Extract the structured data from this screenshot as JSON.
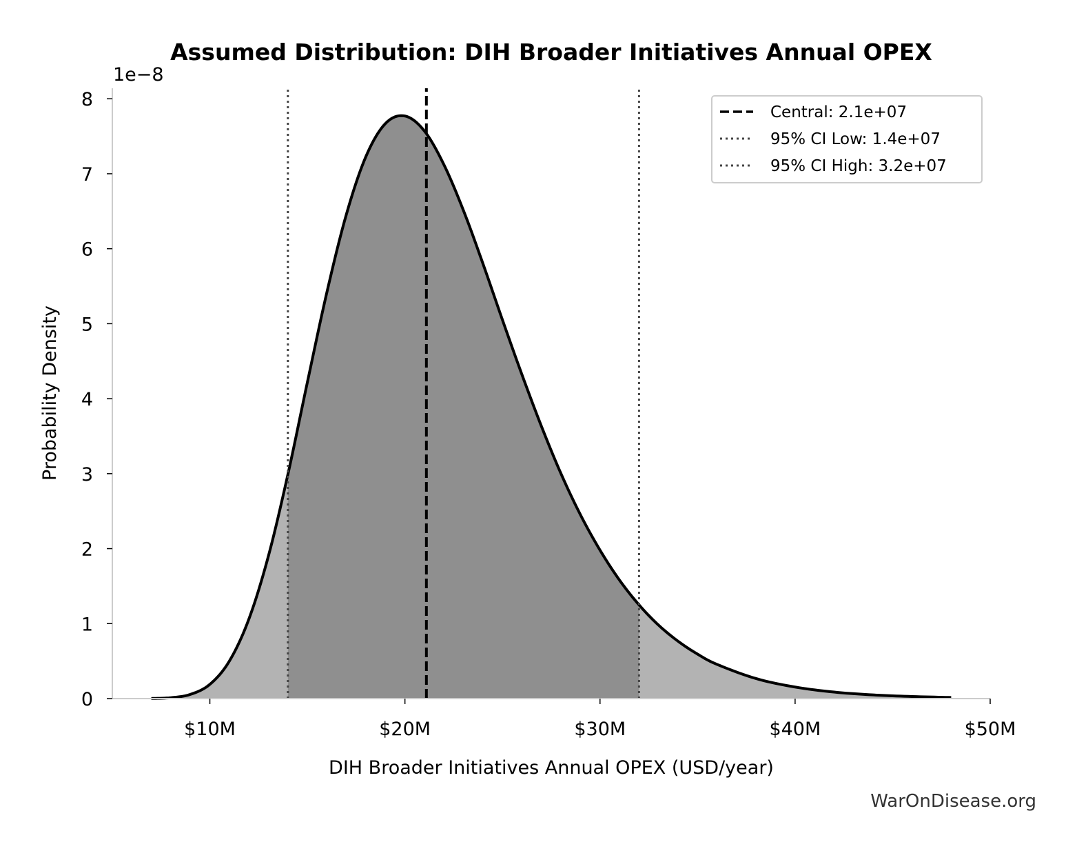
{
  "chart_data": {
    "type": "area",
    "title": "Assumed Distribution: DIH Broader Initiatives Annual OPEX",
    "xlabel": "DIH Broader Initiatives Annual OPEX (USD/year)",
    "ylabel": "Probability Density",
    "y_offset_label": "1e−8",
    "xlim": [
      5,
      50
    ],
    "ylim": [
      0,
      8.14
    ],
    "x_unit": "million USD",
    "y_unit": "1e-8",
    "x_ticks": [
      10,
      20,
      30,
      40,
      50
    ],
    "x_tick_labels": [
      "$10M",
      "$20M",
      "$30M",
      "$40M",
      "$50M"
    ],
    "y_ticks": [
      0,
      1,
      2,
      3,
      4,
      5,
      6,
      7,
      8
    ],
    "y_tick_labels": [
      "0",
      "1",
      "2",
      "3",
      "4",
      "5",
      "6",
      "7",
      "8"
    ],
    "grid": false,
    "legend_placement": "top-right",
    "series": [
      {
        "x": [
          7,
          8,
          9,
          10,
          11,
          12,
          13,
          14,
          15,
          16,
          17,
          18,
          19,
          20,
          21,
          22,
          23,
          24,
          25,
          26,
          27,
          28,
          29,
          30,
          31,
          32,
          33,
          34,
          35,
          36,
          38,
          40,
          42,
          44,
          46,
          48
        ],
        "y": [
          0.0015,
          0.012,
          0.056,
          0.19,
          0.5,
          1.06,
          1.9,
          2.99,
          4.22,
          5.42,
          6.46,
          7.23,
          7.67,
          7.77,
          7.57,
          7.12,
          6.51,
          5.8,
          5.05,
          4.32,
          3.63,
          3.0,
          2.45,
          1.98,
          1.58,
          1.25,
          0.98,
          0.765,
          0.593,
          0.456,
          0.267,
          0.154,
          0.087,
          0.049,
          0.028,
          0.015
        ]
      }
    ],
    "reference_lines": [
      {
        "label": "Central: 2.1e+07",
        "x": 21.1,
        "style": "dashed",
        "color": "#000000"
      },
      {
        "label": "95% CI Low: 1.4e+07",
        "x": 14.0,
        "style": "dotted",
        "color": "#444444"
      },
      {
        "label": "95% CI High: 3.2e+07",
        "x": 32.0,
        "style": "dotted",
        "color": "#444444"
      }
    ],
    "colors": {
      "curve": "#000000",
      "tail_fill": "#b3b3b3",
      "ci_fill": "#8f8f8f",
      "spine": "#cccccc"
    }
  },
  "watermark": "WarOnDisease.org"
}
